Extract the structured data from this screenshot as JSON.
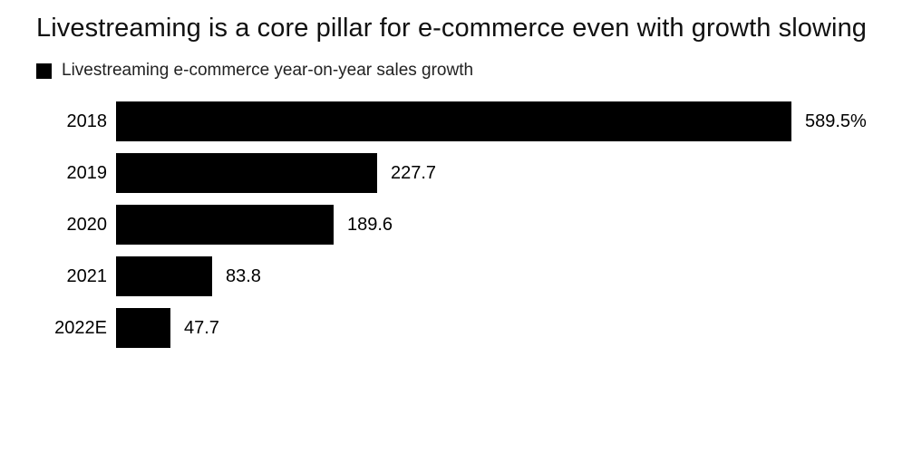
{
  "title": "Livestreaming is a core pillar for e-commerce even with growth slowing",
  "legend": {
    "label": "Livestreaming e-commerce year-on-year sales growth",
    "swatch_color": "#000000"
  },
  "chart_data": {
    "type": "bar",
    "orientation": "horizontal",
    "title": "Livestreaming is a core pillar for e-commerce even with growth slowing",
    "series_name": "Livestreaming e-commerce year-on-year sales growth",
    "categories": [
      "2018",
      "2019",
      "2020",
      "2021",
      "2022E"
    ],
    "values": [
      589.5,
      227.7,
      189.6,
      83.8,
      47.7
    ],
    "value_labels": [
      "589.5%",
      "227.7",
      "189.6",
      "83.8",
      "47.7"
    ],
    "unit": "percent",
    "xlim": [
      0,
      620
    ],
    "grid": false,
    "legend_position": "top-left",
    "bar_color": "#000000",
    "background_color": "#ffffff"
  }
}
